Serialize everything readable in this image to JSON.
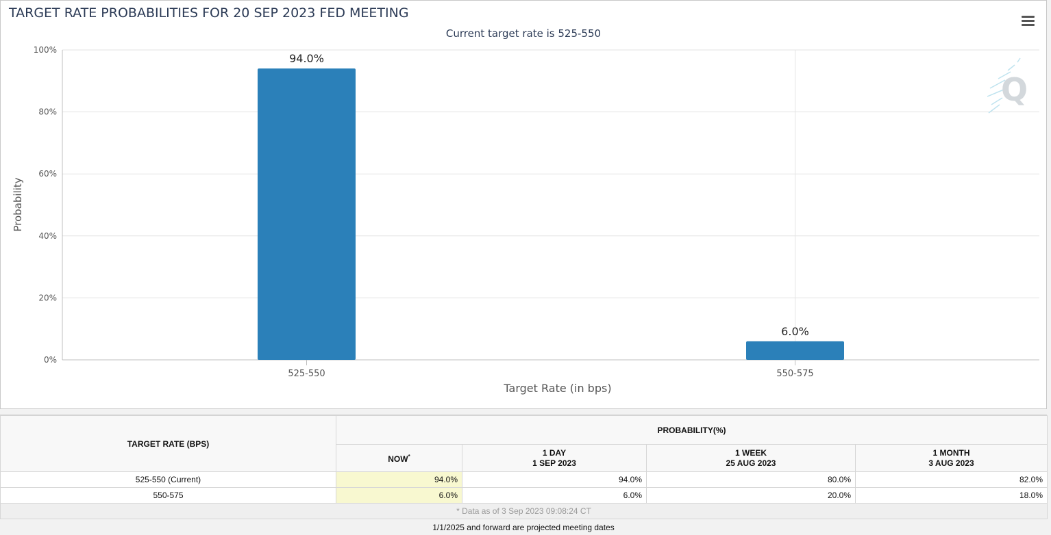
{
  "title": "TARGET RATE PROBABILITIES FOR 20 SEP 2023 FED MEETING",
  "subtitle": "Current target rate is 525-550",
  "chart_data": {
    "type": "bar",
    "title": "TARGET RATE PROBABILITIES FOR 20 SEP 2023 FED MEETING",
    "subtitle": "Current target rate is 525-550",
    "xlabel": "Target Rate (in bps)",
    "ylabel": "Probability",
    "categories": [
      "525-550",
      "550-575"
    ],
    "values": [
      94.0,
      6.0
    ],
    "data_labels": [
      "94.0%",
      "6.0%"
    ],
    "ylim": [
      0,
      100
    ],
    "yticks": [
      0,
      20,
      40,
      60,
      80,
      100
    ],
    "ytick_labels": [
      "0%",
      "20%",
      "40%",
      "60%",
      "80%",
      "100%"
    ],
    "grid": true,
    "bar_color": "#2b80b9"
  },
  "table": {
    "target_rate_header": "TARGET RATE (BPS)",
    "probability_header": "PROBABILITY(%)",
    "columns": [
      {
        "line1": "NOW",
        "line2": "",
        "sup": "*"
      },
      {
        "line1": "1 DAY",
        "line2": "1 SEP 2023",
        "sup": ""
      },
      {
        "line1": "1 WEEK",
        "line2": "25 AUG 2023",
        "sup": ""
      },
      {
        "line1": "1 MONTH",
        "line2": "3 AUG 2023",
        "sup": ""
      }
    ],
    "rows": [
      {
        "rate": "525-550 (Current)",
        "values": [
          "94.0%",
          "94.0%",
          "80.0%",
          "82.0%"
        ]
      },
      {
        "rate": "550-575",
        "values": [
          "6.0%",
          "6.0%",
          "20.0%",
          "18.0%"
        ]
      }
    ],
    "footnote": "* Data as of 3 Sep 2023 09:08:24 CT"
  },
  "projected_note": "1/1/2025 and forward are projected meeting dates",
  "icons": {
    "menu": "hamburger-menu-icon",
    "watermark": "q-logo-watermark"
  }
}
